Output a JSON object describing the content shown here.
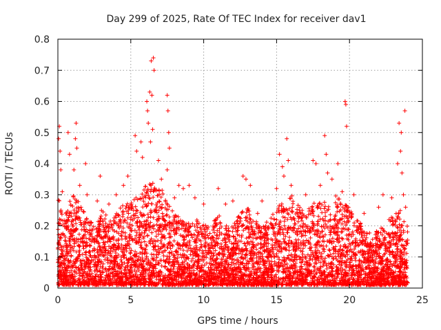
{
  "chart_data": {
    "type": "scatter",
    "title": "Day 299 of 2025, Rate Of TEC Index for receiver dav1",
    "xlabel": "GPS time / hours",
    "ylabel": "ROTI / TECUs",
    "xlim": [
      0,
      25
    ],
    "ylim": [
      0,
      0.8
    ],
    "xticks": [
      0,
      5,
      10,
      15,
      20,
      25
    ],
    "yticks": [
      0,
      0.1,
      0.2,
      0.3,
      0.4,
      0.5,
      0.6,
      0.7,
      0.8
    ],
    "grid": true,
    "marker": "plus",
    "colors": {
      "points": "#ff0000",
      "grid": "#9a9a9a",
      "frame": "#000000"
    },
    "x_range_of_data": [
      0,
      24
    ],
    "points": [
      [
        0.05,
        0.48
      ],
      [
        0.1,
        0.52
      ],
      [
        0.15,
        0.44
      ],
      [
        0.2,
        0.38
      ],
      [
        0.3,
        0.31
      ],
      [
        0.7,
        0.5
      ],
      [
        0.8,
        0.43
      ],
      [
        1.2,
        0.48
      ],
      [
        1.25,
        0.53
      ],
      [
        1.3,
        0.45
      ],
      [
        1.1,
        0.38
      ],
      [
        1.5,
        0.33
      ],
      [
        1.9,
        0.4
      ],
      [
        2.0,
        0.3
      ],
      [
        2.7,
        0.28
      ],
      [
        2.9,
        0.36
      ],
      [
        3.5,
        0.27
      ],
      [
        4.0,
        0.3
      ],
      [
        4.5,
        0.33
      ],
      [
        4.8,
        0.36
      ],
      [
        5.3,
        0.49
      ],
      [
        5.4,
        0.44
      ],
      [
        5.7,
        0.47
      ],
      [
        5.8,
        0.42
      ],
      [
        6.1,
        0.6
      ],
      [
        6.15,
        0.57
      ],
      [
        6.2,
        0.53
      ],
      [
        6.3,
        0.63
      ],
      [
        6.4,
        0.73
      ],
      [
        6.45,
        0.62
      ],
      [
        6.55,
        0.74
      ],
      [
        6.6,
        0.7
      ],
      [
        6.35,
        0.47
      ],
      [
        6.5,
        0.51
      ],
      [
        6.9,
        0.41
      ],
      [
        7.1,
        0.35
      ],
      [
        7.5,
        0.62
      ],
      [
        7.55,
        0.57
      ],
      [
        7.6,
        0.5
      ],
      [
        7.65,
        0.45
      ],
      [
        7.5,
        0.38
      ],
      [
        8.0,
        0.29
      ],
      [
        8.3,
        0.33
      ],
      [
        8.6,
        0.32
      ],
      [
        9.0,
        0.33
      ],
      [
        9.4,
        0.29
      ],
      [
        10.0,
        0.27
      ],
      [
        11.0,
        0.32
      ],
      [
        11.5,
        0.27
      ],
      [
        12.0,
        0.28
      ],
      [
        12.7,
        0.36
      ],
      [
        12.9,
        0.35
      ],
      [
        13.2,
        0.33
      ],
      [
        13.7,
        0.24
      ],
      [
        14.0,
        0.28
      ],
      [
        15.0,
        0.32
      ],
      [
        15.2,
        0.43
      ],
      [
        15.4,
        0.39
      ],
      [
        15.5,
        0.36
      ],
      [
        15.7,
        0.48
      ],
      [
        15.8,
        0.41
      ],
      [
        16.0,
        0.33
      ],
      [
        17.0,
        0.3
      ],
      [
        17.5,
        0.41
      ],
      [
        17.7,
        0.4
      ],
      [
        18.0,
        0.33
      ],
      [
        18.3,
        0.49
      ],
      [
        18.4,
        0.43
      ],
      [
        18.5,
        0.37
      ],
      [
        18.8,
        0.35
      ],
      [
        19.2,
        0.4
      ],
      [
        19.5,
        0.31
      ],
      [
        19.7,
        0.6
      ],
      [
        19.75,
        0.59
      ],
      [
        19.8,
        0.52
      ],
      [
        20.3,
        0.3
      ],
      [
        21.0,
        0.24
      ],
      [
        22.0,
        0.26
      ],
      [
        22.3,
        0.3
      ],
      [
        22.9,
        0.29
      ],
      [
        23.3,
        0.4
      ],
      [
        23.4,
        0.53
      ],
      [
        23.5,
        0.44
      ],
      [
        23.55,
        0.5
      ],
      [
        23.6,
        0.37
      ],
      [
        23.7,
        0.3
      ],
      [
        23.8,
        0.57
      ],
      [
        23.85,
        0.26
      ]
    ],
    "dense_band": {
      "y_min": 0.01,
      "y_typical_max": 0.2,
      "x_start": 0,
      "x_end": 24
    },
    "envelope": [
      [
        0,
        0.3
      ],
      [
        0.5,
        0.24
      ],
      [
        1,
        0.3
      ],
      [
        1.5,
        0.28
      ],
      [
        2,
        0.24
      ],
      [
        2.5,
        0.2
      ],
      [
        3,
        0.26
      ],
      [
        3.5,
        0.22
      ],
      [
        4,
        0.24
      ],
      [
        4.5,
        0.27
      ],
      [
        5,
        0.28
      ],
      [
        5.5,
        0.3
      ],
      [
        6,
        0.33
      ],
      [
        6.5,
        0.34
      ],
      [
        7,
        0.32
      ],
      [
        7.5,
        0.3
      ],
      [
        8,
        0.24
      ],
      [
        8.5,
        0.22
      ],
      [
        9,
        0.22
      ],
      [
        9.5,
        0.22
      ],
      [
        10,
        0.21
      ],
      [
        10.5,
        0.2
      ],
      [
        11,
        0.24
      ],
      [
        11.5,
        0.2
      ],
      [
        12,
        0.2
      ],
      [
        12.5,
        0.24
      ],
      [
        13,
        0.26
      ],
      [
        13.5,
        0.22
      ],
      [
        14,
        0.2
      ],
      [
        14.5,
        0.22
      ],
      [
        15,
        0.26
      ],
      [
        15.5,
        0.28
      ],
      [
        16,
        0.3
      ],
      [
        16.5,
        0.27
      ],
      [
        17,
        0.25
      ],
      [
        17.5,
        0.27
      ],
      [
        18,
        0.29
      ],
      [
        18.5,
        0.27
      ],
      [
        19,
        0.3
      ],
      [
        19.5,
        0.28
      ],
      [
        20,
        0.26
      ],
      [
        20.5,
        0.22
      ],
      [
        21,
        0.2
      ],
      [
        21.5,
        0.17
      ],
      [
        22,
        0.19
      ],
      [
        22.5,
        0.21
      ],
      [
        23,
        0.24
      ],
      [
        23.5,
        0.25
      ],
      [
        24,
        0.2
      ]
    ]
  }
}
